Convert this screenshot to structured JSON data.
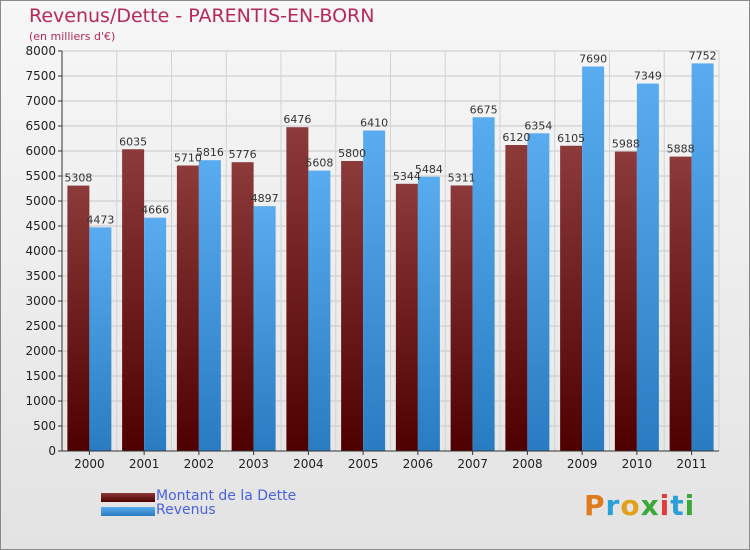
{
  "title": "Revenus/Dette - PARENTIS-EN-BORN",
  "subtitle": "(en milliers d'€)",
  "legend": [
    {
      "label": "Montant de la Dette",
      "color": "#6b0f14"
    },
    {
      "label": "Revenus",
      "color": "#3d93dc"
    }
  ],
  "logo": "Proxiti",
  "colors": {
    "dette_top": "#8c3a3a",
    "dette_bottom": "#4e0000",
    "revenus_top": "#5aacf0",
    "revenus_bottom": "#2a7cc2",
    "title": "#b6285a",
    "legend_text": "#4a62e0"
  },
  "chart_data": {
    "type": "bar",
    "title": "Revenus/Dette - PARENTIS-EN-BORN",
    "ylabel": "(en milliers d'€)",
    "xlabel": "",
    "categories": [
      "2000",
      "2001",
      "2002",
      "2003",
      "2004",
      "2005",
      "2006",
      "2007",
      "2008",
      "2009",
      "2010",
      "2011"
    ],
    "series": [
      {
        "name": "Montant de la Dette",
        "values": [
          5308,
          6035,
          5710,
          5776,
          6476,
          5800,
          5344,
          5311,
          6120,
          6105,
          5988,
          5888
        ],
        "labels": [
          "5308",
          "6035",
          "5710",
          "5776",
          "6476",
          "5800",
          "5344",
          "5311",
          "6120",
          "6105",
          "5988",
          "5888"
        ]
      },
      {
        "name": "Revenus",
        "values": [
          4473,
          4666,
          5816,
          4897,
          5608,
          6410,
          5484,
          6675,
          6354,
          7690,
          7349,
          7752
        ],
        "labels": [
          "4473",
          "4666",
          "5816",
          "4897",
          "5608",
          "6410",
          "5484",
          "6675",
          "6354",
          "7690",
          "7349",
          "7752"
        ]
      }
    ],
    "ylim": [
      0,
      8000
    ],
    "yticks": [
      "0",
      "500",
      "1000",
      "1500",
      "2000",
      "2500",
      "3000",
      "3500",
      "4000",
      "4500",
      "5000",
      "5500",
      "6000",
      "6500",
      "7000",
      "7500",
      "8000"
    ],
    "grid": true,
    "legend_position": "bottom-left"
  }
}
